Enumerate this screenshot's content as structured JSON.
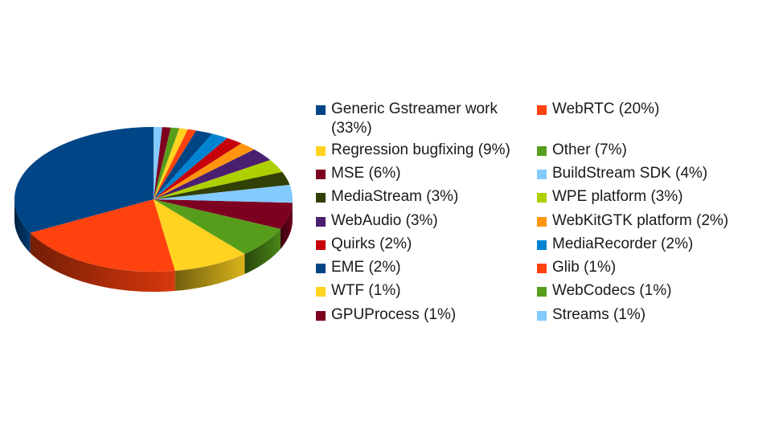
{
  "chart_data": {
    "type": "pie",
    "style": "3d",
    "legend_position": "right",
    "slices": [
      {
        "label": "Generic Gstreamer work (33%)",
        "value": 33,
        "color": "#004586"
      },
      {
        "label": "WebRTC (20%)",
        "value": 20,
        "color": "#ff420e"
      },
      {
        "label": "Regression bugfixing (9%)",
        "value": 9,
        "color": "#ffd320"
      },
      {
        "label": "Other (7%)",
        "value": 7,
        "color": "#579d1c"
      },
      {
        "label": "MSE (6%)",
        "value": 6,
        "color": "#7e0021"
      },
      {
        "label": "BuildStream SDK (4%)",
        "value": 4,
        "color": "#83caff"
      },
      {
        "label": "MediaStream (3%)",
        "value": 3,
        "color": "#314004"
      },
      {
        "label": "WPE platform (3%)",
        "value": 3,
        "color": "#aecf00"
      },
      {
        "label": "WebAudio (3%)",
        "value": 3,
        "color": "#4b1f6f"
      },
      {
        "label": "WebKitGTK platform (2%)",
        "value": 2,
        "color": "#ff950e"
      },
      {
        "label": "Quirks (2%)",
        "value": 2,
        "color": "#c5000b"
      },
      {
        "label": "MediaRecorder (2%)",
        "value": 2,
        "color": "#0084d1"
      },
      {
        "label": "EME (2%)",
        "value": 2,
        "color": "#004586"
      },
      {
        "label": "Glib (1%)",
        "value": 1,
        "color": "#ff420e"
      },
      {
        "label": "WTF (1%)",
        "value": 1,
        "color": "#ffd320"
      },
      {
        "label": "WebCodecs (1%)",
        "value": 1,
        "color": "#579d1c"
      },
      {
        "label": "GPUProcess (1%)",
        "value": 1,
        "color": "#7e0021"
      },
      {
        "label": "Streams (1%)",
        "value": 1,
        "color": "#83caff"
      }
    ]
  }
}
